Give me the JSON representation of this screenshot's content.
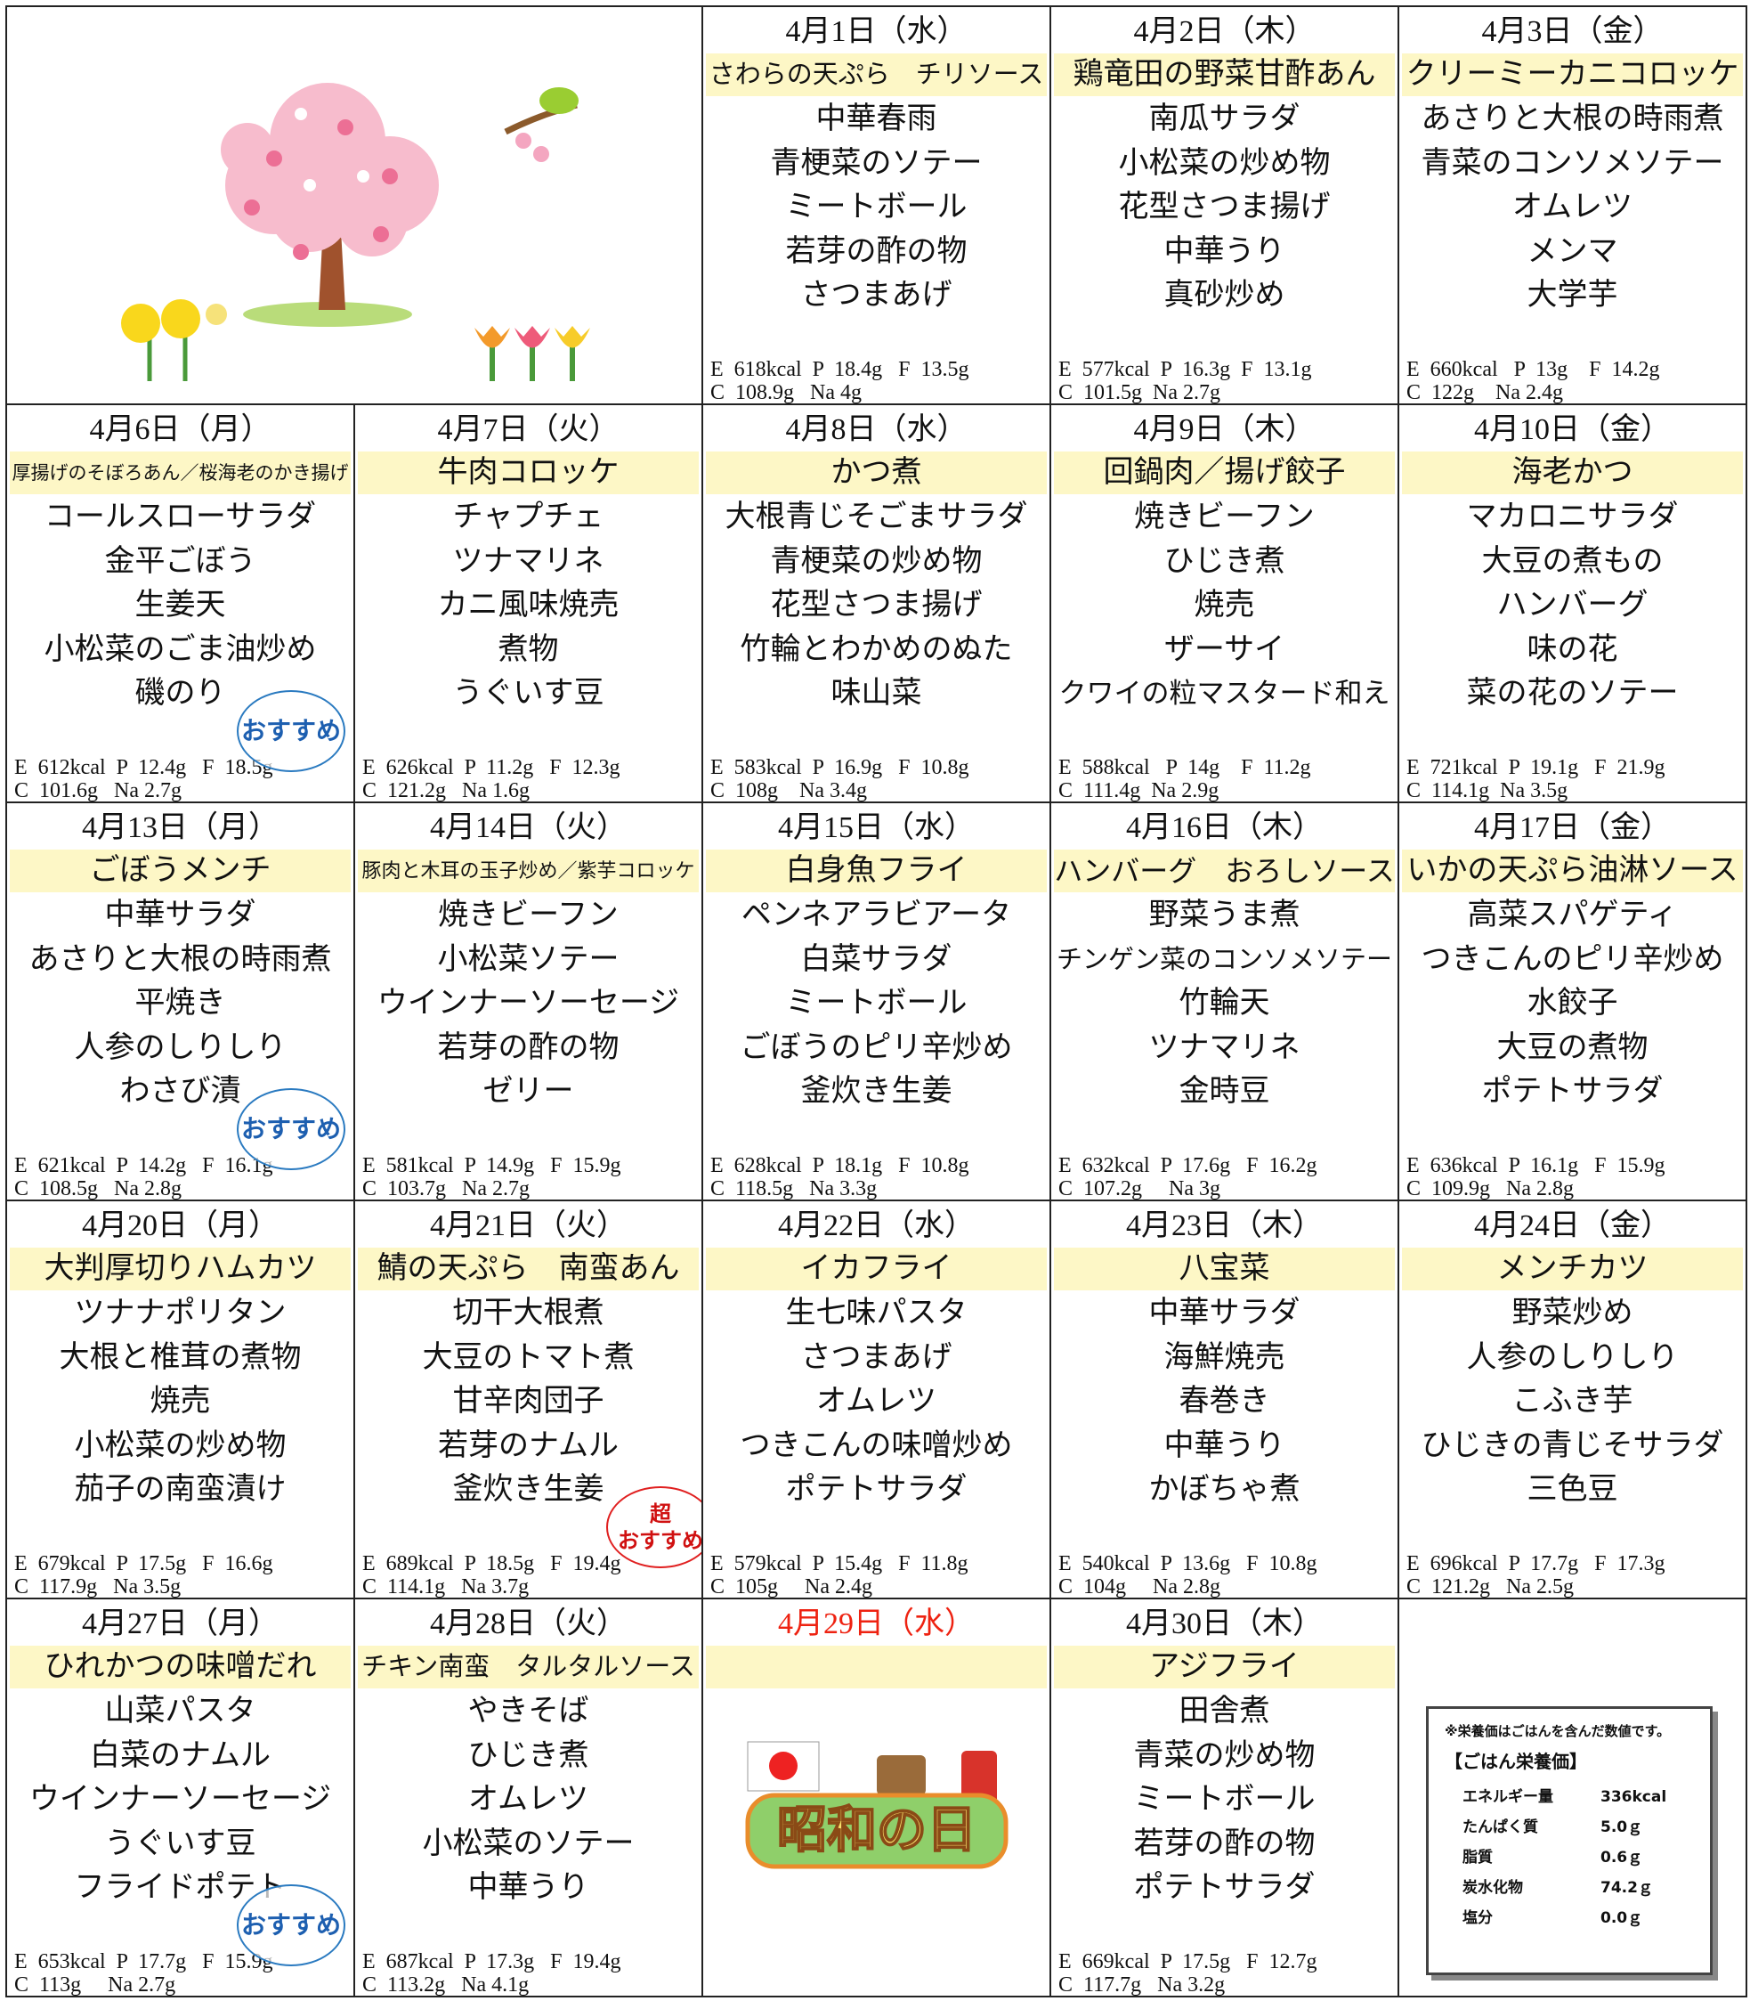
{
  "days": [
    {
      "date": "4月1日（水）",
      "main": "さわらの天ぷら　チリソース",
      "sides": [
        "中華春雨",
        "青梗菜のソテー",
        "ミートボール",
        "若芽の酢の物",
        "さつまあげ"
      ],
      "nutrition": [
        "E  618kcal  P  18.4g   F  13.5g",
        "C  108.9g   Na 4g"
      ]
    },
    {
      "date": "4月2日（木）",
      "main": "鶏竜田の野菜甘酢あん",
      "sides": [
        "南瓜サラダ",
        "小松菜の炒め物",
        "花型さつま揚げ",
        "中華うり",
        "真砂炒め"
      ],
      "nutrition": [
        "E  577kcal  P  16.3g  F  13.1g",
        "C  101.5g  Na 2.7g"
      ]
    },
    {
      "date": "4月3日（金）",
      "main": "クリーミーカニコロッケ",
      "sides": [
        "あさりと大根の時雨煮",
        "青菜のコンソメソテー",
        "オムレツ",
        "メンマ",
        "大学芋"
      ],
      "nutrition": [
        "E  660kcal   P  13g    F  14.2g",
        "C  122g    Na 2.4g"
      ]
    },
    {
      "date": "4月6日（月）",
      "main": "厚揚げのそぼろあん／桜海老のかき揚げ",
      "sides": [
        "コールスローサラダ",
        "金平ごぼう",
        "生姜天",
        "小松菜のごま油炒め",
        "磯のり"
      ],
      "nutrition": [
        "E  612kcal  P  12.4g   F  18.5g",
        "C  101.6g   Na 2.7g"
      ],
      "badge": [
        "おすすめ"
      ]
    },
    {
      "date": "4月7日（火）",
      "main": "牛肉コロッケ",
      "sides": [
        "チャプチェ",
        "ツナマリネ",
        "カニ風味焼売",
        "煮物",
        "うぐいす豆"
      ],
      "nutrition": [
        "E  626kcal  P  11.2g   F  12.3g",
        "C  121.2g   Na 1.6g"
      ]
    },
    {
      "date": "4月8日（水）",
      "main": "かつ煮",
      "sides": [
        "大根青じそごまサラダ",
        "青梗菜の炒め物",
        "花型さつま揚げ",
        "竹輪とわかめのぬた",
        "味山菜"
      ],
      "nutrition": [
        "E  583kcal  P  16.9g   F  10.8g",
        "C  108g    Na 3.4g"
      ]
    },
    {
      "date": "4月9日（木）",
      "main": "回鍋肉／揚げ餃子",
      "sides": [
        "焼きビーフン",
        "ひじき煮",
        "焼売",
        "ザーサイ",
        "クワイの粒マスタード和え"
      ],
      "nutrition": [
        "E  588kcal   P  14g    F  11.2g",
        "C  111.4g  Na 2.9g"
      ]
    },
    {
      "date": "4月10日（金）",
      "main": "海老かつ",
      "sides": [
        "マカロニサラダ",
        "大豆の煮もの",
        "ハンバーグ",
        "味の花",
        "菜の花のソテー"
      ],
      "nutrition": [
        "E  721kcal  P  19.1g   F  21.9g",
        "C  114.1g  Na 3.5g"
      ]
    },
    {
      "date": "4月13日（月）",
      "main": "ごぼうメンチ",
      "sides": [
        "中華サラダ",
        "あさりと大根の時雨煮",
        "平焼き",
        "人参のしりしり",
        "わさび漬"
      ],
      "nutrition": [
        "E  621kcal  P  14.2g   F  16.1g",
        "C  108.5g   Na 2.8g"
      ],
      "badge": [
        "おすすめ"
      ]
    },
    {
      "date": "4月14日（火）",
      "main": "豚肉と木耳の玉子炒め／紫芋コロッケ",
      "sides": [
        "焼きビーフン",
        "小松菜ソテー",
        "ウインナーソーセージ",
        "若芽の酢の物",
        "ゼリー"
      ],
      "nutrition": [
        "E  581kcal  P  14.9g   F  15.9g",
        "C  103.7g   Na 2.7g"
      ]
    },
    {
      "date": "4月15日（水）",
      "main": "白身魚フライ",
      "sides": [
        "ペンネアラビアータ",
        "白菜サラダ",
        "ミートボール",
        "ごぼうのピリ辛炒め",
        "釜炊き生姜"
      ],
      "nutrition": [
        "E  628kcal  P  18.1g   F  10.8g",
        "C  118.5g   Na 3.3g"
      ]
    },
    {
      "date": "4月16日（木）",
      "main": "ハンバーグ　おろしソース",
      "sides": [
        "野菜うま煮",
        "チンゲン菜のコンソメソテー",
        "竹輪天",
        "ツナマリネ",
        "金時豆"
      ],
      "nutrition": [
        "E  632kcal  P  17.6g   F  16.2g",
        "C  107.2g     Na 3g"
      ]
    },
    {
      "date": "4月17日（金）",
      "main": "いかの天ぷら油淋ソース",
      "sides": [
        "高菜スパゲティ",
        "つきこんのピリ辛炒め",
        "水餃子",
        "大豆の煮物",
        "ポテトサラダ"
      ],
      "nutrition": [
        "E  636kcal  P  16.1g   F  15.9g",
        "C  109.9g   Na 2.8g"
      ]
    },
    {
      "date": "4月20日（月）",
      "main": "大判厚切りハムカツ",
      "sides": [
        "ツナナポリタン",
        "大根と椎茸の煮物",
        "焼売",
        "小松菜の炒め物",
        "茄子の南蛮漬け"
      ],
      "nutrition": [
        "E  679kcal  P  17.5g   F  16.6g",
        "C  117.9g   Na 3.5g"
      ]
    },
    {
      "date": "4月21日（火）",
      "main": "鯖の天ぷら　南蛮あん",
      "sides": [
        "切干大根煮",
        "大豆のトマト煮",
        "甘辛肉団子",
        "若芽のナムル",
        "釜炊き生姜"
      ],
      "nutrition": [
        "E  689kcal  P  18.5g   F  19.4g",
        "C  114.1g   Na 3.7g"
      ],
      "badge": [
        "超",
        "おすすめ"
      ]
    },
    {
      "date": "4月22日（水）",
      "main": "イカフライ",
      "sides": [
        "生七味パスタ",
        "さつまあげ",
        "オムレツ",
        "つきこんの味噌炒め",
        "ポテトサラダ"
      ],
      "nutrition": [
        "E  579kcal  P  15.4g   F  11.8g",
        "C  105g     Na 2.4g"
      ]
    },
    {
      "date": "4月23日（木）",
      "main": "八宝菜",
      "sides": [
        "中華サラダ",
        "海鮮焼売",
        "春巻き",
        "中華うり",
        "かぼちゃ煮"
      ],
      "nutrition": [
        "E  540kcal  P  13.6g   F  10.8g",
        "C  104g     Na 2.8g"
      ]
    },
    {
      "date": "4月24日（金）",
      "main": "メンチカツ",
      "sides": [
        "野菜炒め",
        "人参のしりしり",
        "こふき芋",
        "ひじきの青じそサラダ",
        "三色豆"
      ],
      "nutrition": [
        "E  696kcal  P  17.7g   F  17.3g",
        "C  121.2g   Na 2.5g"
      ]
    },
    {
      "date": "4月27日（月）",
      "main": "ひれかつの味噌だれ",
      "sides": [
        "山菜パスタ",
        "白菜のナムル",
        "ウインナーソーセージ",
        "うぐいす豆",
        "フライドポテト"
      ],
      "nutrition": [
        "E  653kcal  P  17.7g   F  15.9g",
        "C  113g     Na 2.7g"
      ],
      "badge": [
        "おすすめ"
      ]
    },
    {
      "date": "4月28日（火）",
      "main": "チキン南蛮　タルタルソース",
      "sides": [
        "やきそば",
        "ひじき煮",
        "オムレツ",
        "小松菜のソテー",
        "中華うり"
      ],
      "nutrition": [
        "E  687kcal  P  17.3g   F  19.4g",
        "C  113.2g   Na 4.1g"
      ]
    },
    {
      "date": "4月29日（水）",
      "holiday": true,
      "holiday_label": "昭和の日"
    },
    {
      "date": "4月30日（木）",
      "main": "アジフライ",
      "sides": [
        "田舎煮",
        "青菜の炒め物",
        "ミートボール",
        "若芽の酢の物",
        "ポテトサラダ"
      ],
      "nutrition": [
        "E  669kcal  P  17.5g   F  12.7g",
        "C  117.7g   Na 3.2g"
      ]
    }
  ],
  "rice": {
    "note": "※栄養価はごはんを含んだ数値です。",
    "title": "【ごはん栄養価】",
    "rows": [
      [
        "エネルギー量",
        "336kcal"
      ],
      [
        "たんぱく質",
        "5.0ｇ"
      ],
      [
        "脂質",
        "0.6ｇ"
      ],
      [
        "炭水化物",
        "74.2ｇ"
      ],
      [
        "塩分",
        "0.0ｇ"
      ]
    ]
  }
}
